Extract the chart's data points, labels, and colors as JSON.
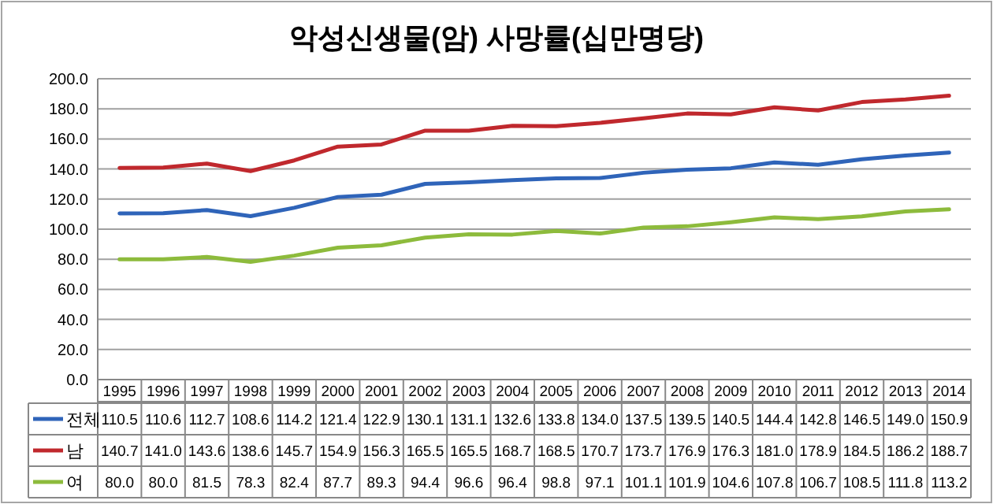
{
  "chart_data": {
    "type": "line",
    "title": "악성신생물(암) 사망률(십만명당)",
    "categories": [
      "1995",
      "1996",
      "1997",
      "1998",
      "1999",
      "2000",
      "2001",
      "2002",
      "2003",
      "2004",
      "2005",
      "2006",
      "2007",
      "2008",
      "2009",
      "2010",
      "2011",
      "2012",
      "2013",
      "2014"
    ],
    "series": [
      {
        "name": "전체",
        "color": "#2f64b9",
        "values": [
          110.5,
          110.6,
          112.7,
          108.6,
          114.2,
          121.4,
          122.9,
          130.1,
          131.1,
          132.6,
          133.8,
          134.0,
          137.5,
          139.5,
          140.5,
          144.4,
          142.8,
          146.5,
          149.0,
          150.9
        ],
        "value_labels": [
          "110.5",
          "110.6",
          "112.7",
          "108.6",
          "114.2",
          "121.4",
          "122.9",
          "130.1",
          "131.1",
          "132.6",
          "133.8",
          "134.0",
          "137.5",
          "139.5",
          "140.5",
          "144.4",
          "142.8",
          "146.5",
          "149.0",
          "150.9"
        ]
      },
      {
        "name": "남",
        "color": "#c0282d",
        "values": [
          140.7,
          141.0,
          143.6,
          138.6,
          145.7,
          154.9,
          156.3,
          165.5,
          165.5,
          168.7,
          168.5,
          170.7,
          173.7,
          176.9,
          176.3,
          181.0,
          178.9,
          184.5,
          186.2,
          188.7
        ],
        "value_labels": [
          "140.7",
          "141.0",
          "143.6",
          "138.6",
          "145.7",
          "154.9",
          "156.3",
          "165.5",
          "165.5",
          "168.7",
          "168.5",
          "170.7",
          "173.7",
          "176.9",
          "176.3",
          "181.0",
          "178.9",
          "184.5",
          "186.2",
          "188.7"
        ]
      },
      {
        "name": "여",
        "color": "#8dbb3c",
        "values": [
          80.0,
          80.0,
          81.5,
          78.3,
          82.4,
          87.7,
          89.3,
          94.4,
          96.6,
          96.4,
          98.8,
          97.1,
          101.1,
          101.9,
          104.6,
          107.8,
          106.7,
          108.5,
          111.8,
          113.2
        ],
        "value_labels": [
          "80.0",
          "80.0",
          "81.5",
          "78.3",
          "82.4",
          "87.7",
          "89.3",
          "94.4",
          "96.6",
          "96.4",
          "98.8",
          "97.1",
          "101.1",
          "101.9",
          "104.6",
          "107.8",
          "106.7",
          "108.5",
          "111.8",
          "113.2"
        ]
      }
    ],
    "ylim": [
      0,
      200
    ],
    "yticks": [
      {
        "value": 0,
        "label": "0.0"
      },
      {
        "value": 20,
        "label": "20.0"
      },
      {
        "value": 40,
        "label": "40.0"
      },
      {
        "value": 60,
        "label": "60.0"
      },
      {
        "value": 80,
        "label": "80.0"
      },
      {
        "value": 100,
        "label": "100.0"
      },
      {
        "value": 120,
        "label": "120.0"
      },
      {
        "value": 140,
        "label": "140.0"
      },
      {
        "value": 160,
        "label": "160.0"
      },
      {
        "value": 180,
        "label": "180.0"
      },
      {
        "value": 200,
        "label": "200.0"
      }
    ],
    "grid": "y",
    "legend": "bottom",
    "marker": "none",
    "line_style": "solid"
  }
}
